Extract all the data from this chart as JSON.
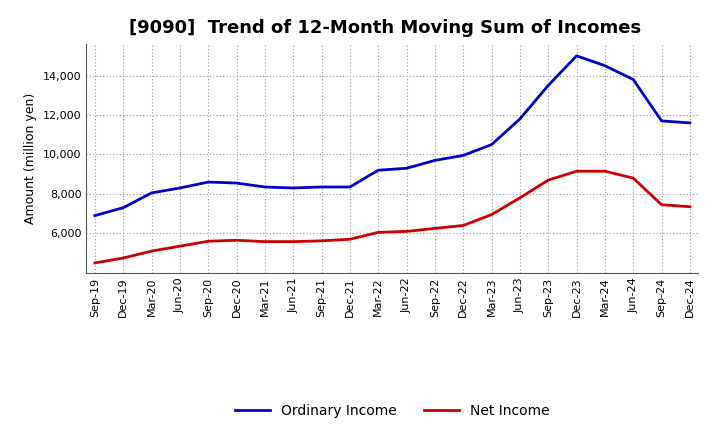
{
  "title": "[9090]  Trend of 12-Month Moving Sum of Incomes",
  "ylabel": "Amount (million yen)",
  "x_labels": [
    "Sep-19",
    "Dec-19",
    "Mar-20",
    "Jun-20",
    "Sep-20",
    "Dec-20",
    "Mar-21",
    "Jun-21",
    "Sep-21",
    "Dec-21",
    "Mar-22",
    "Jun-22",
    "Sep-22",
    "Dec-22",
    "Mar-23",
    "Jun-23",
    "Sep-23",
    "Dec-23",
    "Mar-24",
    "Jun-24",
    "Sep-24",
    "Dec-24"
  ],
  "ordinary_income": [
    6900,
    7300,
    8050,
    8300,
    8600,
    8550,
    8350,
    8300,
    8350,
    8350,
    9200,
    9300,
    9700,
    9950,
    10500,
    11800,
    13500,
    15000,
    14500,
    13800,
    11700,
    11600
  ],
  "net_income": [
    4500,
    4750,
    5100,
    5350,
    5600,
    5650,
    5580,
    5580,
    5620,
    5700,
    6050,
    6100,
    6250,
    6400,
    6950,
    7800,
    8700,
    9150,
    9150,
    8800,
    7450,
    7350
  ],
  "ordinary_color": "#0000cc",
  "net_color": "#cc0000",
  "ylim_min": 4000,
  "ylim_max": 15600,
  "yticks": [
    6000,
    8000,
    10000,
    12000,
    14000
  ],
  "background_color": "#ffffff",
  "grid_color": "#999999",
  "title_fontsize": 13,
  "ylabel_fontsize": 9,
  "tick_fontsize": 8,
  "legend_fontsize": 10,
  "line_width": 2.0
}
